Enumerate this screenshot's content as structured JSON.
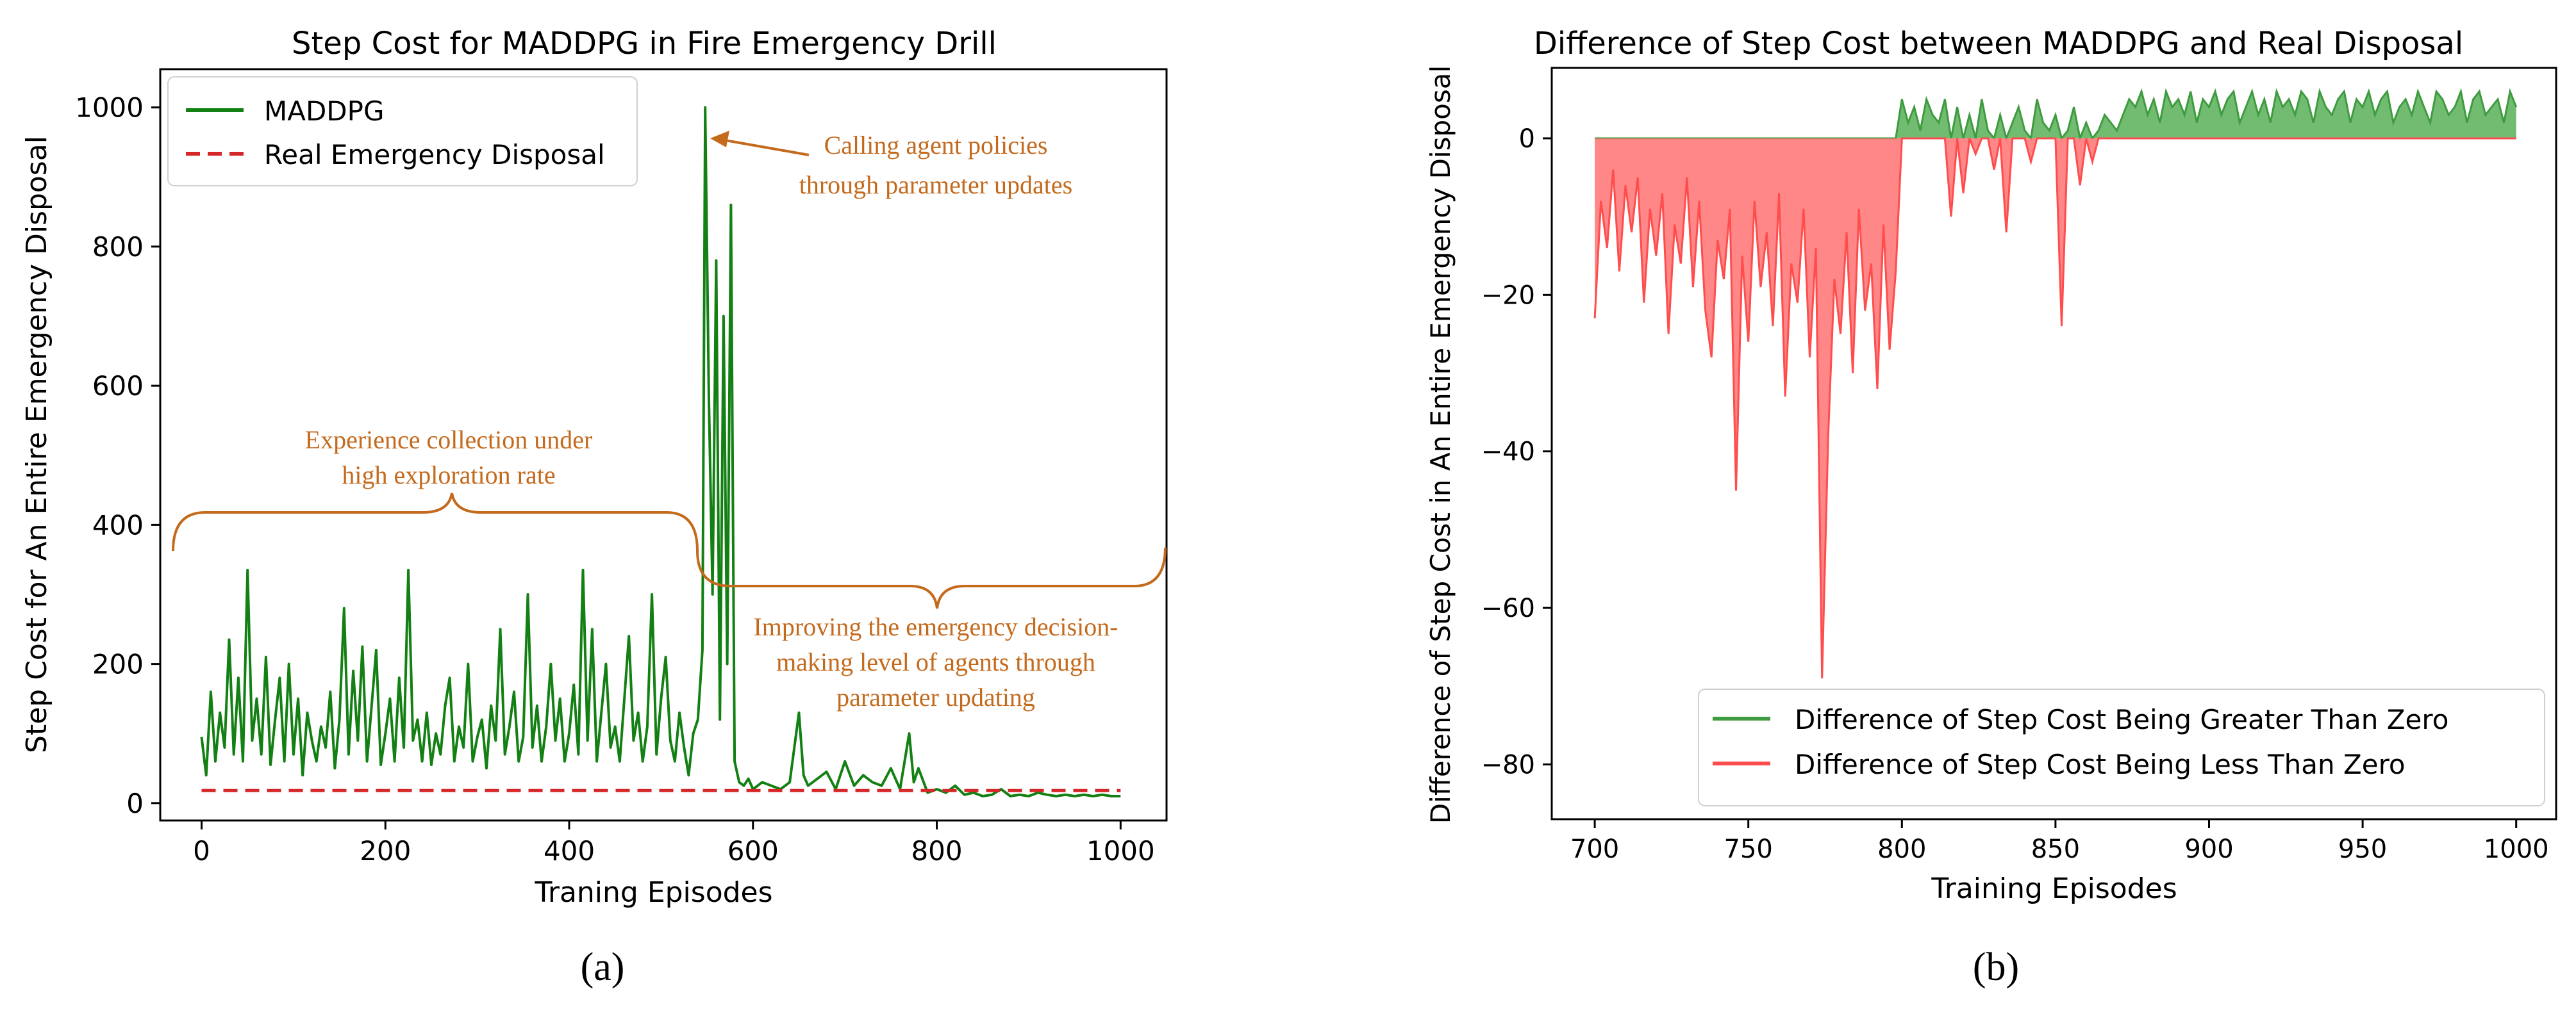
{
  "colors": {
    "maddpg": "#138013",
    "real": "#d62728",
    "annotation": "#c46a1d",
    "pos_fill": "#58b058",
    "pos_line": "#3f9b3f",
    "neg_fill": "#ff7272",
    "neg_line": "#ff4d4d"
  },
  "panel_labels": {
    "a": "(a)",
    "b": "(b)"
  },
  "chart_data": [
    {
      "id": "a",
      "type": "line",
      "title": "Step Cost for MADDPG in Fire Emergency Drill",
      "xlabel": "Traning Episodes",
      "ylabel": "Step Cost for An Entire Emergency Disposal",
      "xlim": [
        -45,
        1050
      ],
      "ylim": [
        -25,
        1055
      ],
      "xticks": [
        0,
        200,
        400,
        600,
        800,
        1000
      ],
      "yticks": [
        0,
        200,
        400,
        600,
        800,
        1000
      ],
      "legend_position": "top-left",
      "legend": [
        "MADDPG",
        "Real Emergency Disposal"
      ],
      "series": [
        {
          "name": "MADDPG",
          "style": "solid",
          "x": [
            0,
            5,
            10,
            15,
            20,
            25,
            30,
            35,
            40,
            45,
            50,
            55,
            60,
            65,
            70,
            75,
            80,
            85,
            90,
            95,
            100,
            105,
            110,
            115,
            120,
            125,
            130,
            135,
            140,
            145,
            150,
            155,
            160,
            165,
            170,
            175,
            180,
            185,
            190,
            195,
            200,
            205,
            210,
            215,
            220,
            225,
            230,
            235,
            240,
            245,
            250,
            255,
            260,
            265,
            270,
            275,
            280,
            285,
            290,
            295,
            300,
            305,
            310,
            315,
            320,
            325,
            330,
            335,
            340,
            345,
            350,
            355,
            360,
            365,
            370,
            375,
            380,
            385,
            390,
            395,
            400,
            405,
            410,
            415,
            420,
            425,
            430,
            435,
            440,
            445,
            450,
            455,
            460,
            465,
            470,
            475,
            480,
            485,
            490,
            495,
            500,
            505,
            510,
            515,
            520,
            525,
            530,
            535,
            540,
            545,
            548,
            552,
            556,
            560,
            564,
            568,
            572,
            576,
            580,
            585,
            590,
            595,
            600,
            610,
            620,
            630,
            640,
            650,
            655,
            660,
            670,
            680,
            690,
            700,
            710,
            720,
            730,
            740,
            750,
            760,
            770,
            775,
            780,
            790,
            800,
            810,
            820,
            830,
            840,
            850,
            860,
            870,
            880,
            890,
            900,
            910,
            920,
            930,
            940,
            950,
            960,
            970,
            980,
            990,
            1000
          ],
          "values": [
            95,
            40,
            160,
            60,
            130,
            80,
            235,
            70,
            180,
            60,
            335,
            90,
            150,
            70,
            210,
            55,
            120,
            180,
            60,
            200,
            70,
            150,
            40,
            130,
            90,
            60,
            110,
            80,
            160,
            50,
            120,
            280,
            70,
            190,
            90,
            225,
            60,
            140,
            220,
            55,
            100,
            150,
            60,
            180,
            80,
            335,
            90,
            120,
            60,
            130,
            55,
            100,
            70,
            140,
            180,
            60,
            110,
            80,
            200,
            60,
            95,
            120,
            50,
            140,
            90,
            250,
            70,
            110,
            160,
            60,
            95,
            300,
            80,
            140,
            60,
            110,
            200,
            90,
            150,
            60,
            100,
            170,
            70,
            335,
            90,
            250,
            60,
            130,
            200,
            80,
            110,
            60,
            150,
            240,
            90,
            130,
            60,
            110,
            300,
            70,
            150,
            210,
            90,
            60,
            130,
            80,
            40,
            100,
            120,
            220,
            1000,
            580,
            300,
            780,
            120,
            700,
            200,
            860,
            60,
            30,
            25,
            35,
            20,
            30,
            25,
            20,
            30,
            130,
            40,
            25,
            35,
            45,
            20,
            60,
            25,
            40,
            30,
            25,
            50,
            20,
            100,
            30,
            50,
            15,
            20,
            15,
            25,
            12,
            15,
            10,
            12,
            20,
            10,
            12,
            10,
            15,
            12,
            10,
            12,
            10,
            12,
            10,
            12,
            10,
            10
          ]
        },
        {
          "name": "Real Emergency Disposal",
          "style": "dashed",
          "x": [
            0,
            1000
          ],
          "values": [
            18,
            18
          ]
        }
      ],
      "annotations": [
        {
          "text_lines": [
            "Calling agent policies",
            "through parameter updates"
          ]
        },
        {
          "text_lines": [
            "Experience collection under",
            "high exploration rate"
          ]
        },
        {
          "text_lines": [
            "Improving the emergency decision-",
            "making level of agents through",
            "parameter updating"
          ]
        }
      ]
    },
    {
      "id": "b",
      "type": "area",
      "title": "Difference of Step Cost between MADDPG and Real Disposal",
      "xlabel": "Training Episodes",
      "ylabel": "Difference of Step Cost in An Entire Emergency Disposal",
      "xlim": [
        686,
        1013
      ],
      "ylim": [
        -87,
        9
      ],
      "xticks": [
        700,
        750,
        800,
        850,
        900,
        950,
        1000
      ],
      "yticks": [
        -80,
        -60,
        -40,
        -20,
        0
      ],
      "legend_position": "bottom-right",
      "legend": [
        "Difference of Step Cost Being Greater Than Zero",
        "Difference of Step Cost Being Less Than Zero"
      ],
      "x": [
        700,
        702,
        704,
        706,
        708,
        710,
        712,
        714,
        716,
        718,
        720,
        722,
        724,
        726,
        728,
        730,
        732,
        734,
        736,
        738,
        740,
        742,
        744,
        746,
        748,
        750,
        752,
        754,
        756,
        758,
        760,
        762,
        764,
        766,
        768,
        770,
        772,
        774,
        776,
        778,
        780,
        782,
        784,
        786,
        788,
        790,
        792,
        794,
        796,
        798,
        800,
        802,
        804,
        806,
        808,
        810,
        812,
        814,
        816,
        818,
        820,
        822,
        824,
        826,
        828,
        830,
        832,
        834,
        836,
        838,
        840,
        842,
        844,
        846,
        848,
        850,
        852,
        854,
        856,
        858,
        860,
        862,
        864,
        866,
        868,
        870,
        872,
        874,
        876,
        878,
        880,
        882,
        884,
        886,
        888,
        890,
        892,
        894,
        896,
        898,
        900,
        902,
        904,
        906,
        908,
        910,
        912,
        914,
        916,
        918,
        920,
        922,
        924,
        926,
        928,
        930,
        932,
        934,
        936,
        938,
        940,
        942,
        944,
        946,
        948,
        950,
        952,
        954,
        956,
        958,
        960,
        962,
        964,
        966,
        968,
        970,
        972,
        974,
        976,
        978,
        980,
        982,
        984,
        986,
        988,
        990,
        992,
        994,
        996,
        998,
        1000
      ],
      "values": [
        -23,
        -8,
        -14,
        -4,
        -17,
        -6,
        -12,
        -5,
        -21,
        -9,
        -15,
        -7,
        -25,
        -11,
        -16,
        -5,
        -19,
        -8,
        -22,
        -28,
        -13,
        -18,
        -9,
        -45,
        -15,
        -26,
        -8,
        -19,
        -12,
        -24,
        -7,
        -33,
        -16,
        -21,
        -9,
        -28,
        -14,
        -69,
        -38,
        -18,
        -25,
        -12,
        -30,
        -9,
        -22,
        -16,
        -32,
        -11,
        -27,
        -17,
        5,
        2,
        4,
        1,
        5,
        3,
        2,
        5,
        -10,
        4,
        -7,
        3,
        -2,
        5,
        1,
        -4,
        3,
        -12,
        2,
        4,
        1,
        -3,
        5,
        2,
        1,
        3,
        -24,
        1,
        4,
        -6,
        2,
        -3,
        1,
        3,
        2,
        1,
        3,
        5,
        4,
        6,
        3,
        5,
        2,
        6,
        4,
        5,
        3,
        6,
        2,
        5,
        4,
        6,
        3,
        5,
        6,
        2,
        4,
        6,
        3,
        5,
        2,
        6,
        4,
        5,
        3,
        6,
        5,
        2,
        6,
        4,
        3,
        5,
        6,
        2,
        5,
        4,
        6,
        3,
        5,
        6,
        2,
        4,
        5,
        3,
        6,
        4,
        2,
        6,
        5,
        3,
        4,
        6,
        2,
        5,
        6,
        3,
        4,
        5,
        2,
        6,
        4
      ]
    }
  ]
}
